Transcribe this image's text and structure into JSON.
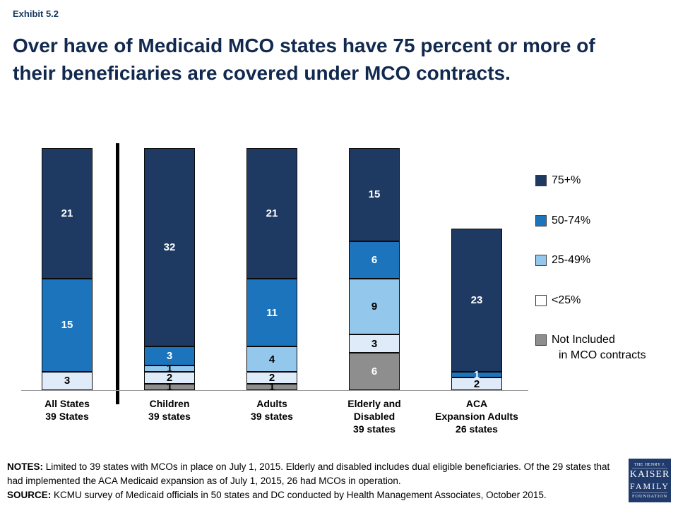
{
  "header": {
    "exhibit": "Exhibit 5.2",
    "title_line1": "Over have of Medicaid MCO states have 75 percent or more of",
    "title_line2": "their beneficiaries are covered under MCO contracts."
  },
  "chart_data": {
    "type": "bar",
    "stacked": true,
    "title": "Over have of Medicaid MCO states have 75 percent or more of their beneficiaries are covered under MCO contracts.",
    "xlabel": "",
    "ylabel": "",
    "ylim": [
      0,
      39
    ],
    "grid": false,
    "legend_position": "right",
    "categories": [
      {
        "lines": [
          "All States",
          "39 States"
        ]
      },
      {
        "lines": [
          "Children",
          "39 states"
        ]
      },
      {
        "lines": [
          "Adults",
          "39 states"
        ]
      },
      {
        "lines": [
          "Elderly and",
          "Disabled",
          "39 states"
        ]
      },
      {
        "lines": [
          "ACA",
          "Expansion Adults",
          "26 states"
        ]
      }
    ],
    "bar_totals": [
      39,
      39,
      39,
      39,
      26
    ],
    "series": [
      {
        "name": "75+%",
        "color": "#1E3A63",
        "label_color": "#FFFFFF",
        "values": [
          21,
          32,
          21,
          15,
          23
        ]
      },
      {
        "name": "50-74%",
        "color": "#1C75BC",
        "label_color": "#FFFFFF",
        "values": [
          15,
          3,
          11,
          6,
          1
        ]
      },
      {
        "name": "25-49%",
        "color": "#93C7EC",
        "label_color": "#000000",
        "values": [
          0,
          1,
          4,
          9,
          0
        ]
      },
      {
        "name": "<25%",
        "color": "#DFEBF8",
        "label_color": "#000000",
        "values": [
          3,
          2,
          2,
          3,
          2
        ]
      },
      {
        "name": "Not Included in MCO contracts",
        "color": "#8E8E8E",
        "label_colors": [
          "#000000",
          "#000000",
          "#000000",
          "#FFFFFF",
          "#000000"
        ],
        "values": [
          0,
          1,
          1,
          6,
          0
        ]
      }
    ],
    "legend": [
      {
        "label": "75+%",
        "color": "#1E3A63"
      },
      {
        "label": "50-74%",
        "color": "#1C75BC"
      },
      {
        "label": "25-49%",
        "color": "#93C7EC"
      },
      {
        "label": "<25%",
        "color": "#FFFFFF"
      },
      {
        "label": "Not Included",
        "label_line2": "in MCO contracts",
        "color": "#8E8E8E"
      }
    ]
  },
  "footer": {
    "notes_label": "NOTES:",
    "notes_text": "Limited to 39 states with MCOs in place on July 1, 2015. Elderly and disabled includes dual eligible beneficiaries. Of the 29 states that had implemented the ACA Medicaid expansion as of July 1, 2015, 26 had MCOs in operation.",
    "source_label": "SOURCE:",
    "source_text": "KCMU survey of Medicaid officials in 50 states and DC conducted by Health Management Associates, October 2015."
  },
  "logo": {
    "line1": "THE HENRY J.",
    "line2": "KAISER",
    "line3": "FAMILY",
    "line4": "FOUNDATION"
  }
}
